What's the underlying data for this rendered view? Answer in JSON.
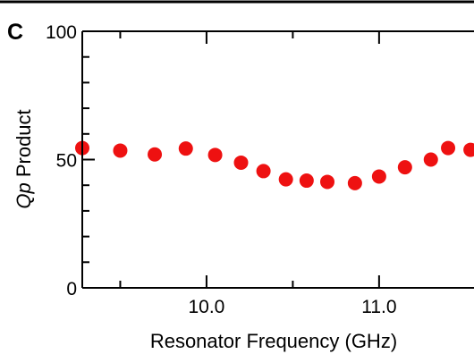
{
  "panel_label": "c",
  "chart_data": {
    "type": "scatter",
    "xlabel": "Resonator Frequency (GHz)",
    "ylabel_italic": "Qp",
    "ylabel_rest": " Product",
    "xlim": [
      9.28,
      11.55
    ],
    "ylim": [
      0,
      100
    ],
    "x_major_ticks": [
      10.0,
      11.0
    ],
    "x_tick_labels": [
      "10.0",
      "11.0"
    ],
    "x_minor_ticks": [
      9.5,
      10.5
    ],
    "y_major_ticks": [
      0,
      50,
      100
    ],
    "y_tick_labels": [
      "0",
      "50",
      "100"
    ],
    "y_minor_ticks": [
      10,
      20,
      30,
      40,
      60,
      70,
      80,
      90
    ],
    "marker_color": "#ee1111",
    "points": [
      {
        "x": 9.28,
        "y": 54.5
      },
      {
        "x": 9.5,
        "y": 53.5
      },
      {
        "x": 9.7,
        "y": 52.0
      },
      {
        "x": 9.88,
        "y": 54.3
      },
      {
        "x": 10.05,
        "y": 51.8
      },
      {
        "x": 10.2,
        "y": 48.8
      },
      {
        "x": 10.33,
        "y": 45.5
      },
      {
        "x": 10.46,
        "y": 42.3
      },
      {
        "x": 10.58,
        "y": 41.8
      },
      {
        "x": 10.7,
        "y": 41.3
      },
      {
        "x": 10.86,
        "y": 40.8
      },
      {
        "x": 11.0,
        "y": 43.4
      },
      {
        "x": 11.15,
        "y": 47.0
      },
      {
        "x": 11.3,
        "y": 50.0
      },
      {
        "x": 11.4,
        "y": 54.5
      },
      {
        "x": 11.53,
        "y": 53.8
      }
    ]
  }
}
